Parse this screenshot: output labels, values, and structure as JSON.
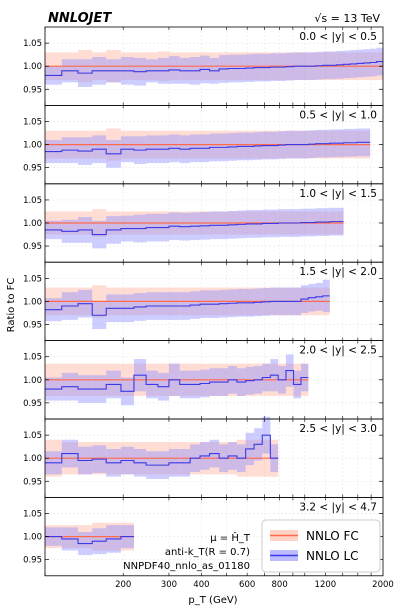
{
  "header": {
    "logo": "NNLOJET",
    "energy": "√s = 13 TeV"
  },
  "axes": {
    "ylabel": "Ratio to FC",
    "xlabel": "p_T (GeV)",
    "y_ticks": [
      "1.05",
      "1.00",
      "0.95"
    ],
    "x_ticks": [
      "200",
      "300",
      "400",
      "600",
      "800",
      "1200",
      "2000"
    ]
  },
  "annotation": {
    "scale": "μ = Ĥ_T",
    "jet": "anti-k_T(R = 0.7)",
    "pdf": "NNPDF40_nnlo_as_01180"
  },
  "legend": {
    "fc_label": "NNLO FC",
    "lc_label": "NNLO LC"
  },
  "colors": {
    "fc_line": "#ff6a4d",
    "fc_band": "#ffb4a0",
    "lc_line": "#3a3ae6",
    "lc_band": "#9090ff"
  },
  "chart_data": {
    "type": "line",
    "x_scale": "log",
    "xlim": [
      100,
      2000
    ],
    "ylim": [
      0.915,
      1.085
    ],
    "grid": true,
    "legend_position": "bottom-right",
    "panels": [
      {
        "label": "0.0 < |y| < 0.5",
        "edges": [
          100,
          116,
          134,
          152,
          172,
          196,
          220,
          245,
          272,
          300,
          330,
          362,
          395,
          430,
          468,
          507,
          548,
          592,
          638,
          686,
          737,
          790,
          846,
          905,
          967,
          1032,
          1101,
          1172,
          1248,
          1327,
          1410,
          1497,
          1588,
          1684,
          1784,
          1890,
          2000
        ],
        "lc": [
          0.98,
          0.99,
          0.985,
          0.99,
          0.99,
          0.99,
          0.988,
          0.99,
          0.99,
          0.992,
          0.99,
          0.99,
          0.993,
          0.99,
          0.994,
          0.995,
          0.995,
          0.996,
          0.997,
          0.997,
          0.998,
          0.998,
          0.999,
          1.0,
          1.0,
          1.0,
          1.001,
          1.002,
          1.002,
          1.003,
          1.004,
          1.005,
          1.006,
          1.007,
          1.008,
          1.01
        ],
        "lc_err": [
          0.02,
          0.025,
          0.03,
          0.03,
          0.025,
          0.03,
          0.03,
          0.025,
          0.028,
          0.03,
          0.028,
          0.03,
          0.03,
          0.028,
          0.03,
          0.03,
          0.03,
          0.03,
          0.03,
          0.03,
          0.03,
          0.03,
          0.03,
          0.03,
          0.03,
          0.03,
          0.03,
          0.03,
          0.03,
          0.03,
          0.03,
          0.03,
          0.03,
          0.03,
          0.03,
          0.03
        ],
        "fc_err": [
          0.03,
          0.03,
          0.035,
          0.03,
          0.035,
          0.03,
          0.03,
          0.03,
          0.032,
          0.03,
          0.03,
          0.03,
          0.03,
          0.03,
          0.03,
          0.03,
          0.03,
          0.03,
          0.03,
          0.03,
          0.03,
          0.03,
          0.03,
          0.03,
          0.03,
          0.03,
          0.03,
          0.03,
          0.03,
          0.03,
          0.03,
          0.03,
          0.03,
          0.03,
          0.03,
          0.03
        ]
      },
      {
        "label": "0.5 < |y| < 1.0",
        "edges": [
          100,
          116,
          134,
          152,
          172,
          196,
          220,
          245,
          272,
          300,
          330,
          362,
          395,
          430,
          468,
          507,
          548,
          592,
          638,
          686,
          737,
          790,
          846,
          905,
          967,
          1032,
          1101,
          1172,
          1248,
          1327,
          1410,
          1497,
          1588,
          1684,
          1784
        ],
        "lc": [
          0.985,
          0.988,
          0.986,
          0.99,
          0.98,
          0.99,
          0.988,
          0.99,
          0.99,
          0.992,
          0.99,
          0.992,
          0.992,
          0.994,
          0.994,
          0.995,
          0.996,
          0.996,
          0.997,
          0.998,
          0.998,
          0.999,
          1.0,
          1.0,
          1.0,
          1.001,
          1.002,
          1.002,
          1.003,
          1.003,
          1.004,
          1.004,
          1.005,
          1.005
        ],
        "lc_err": [
          0.025,
          0.028,
          0.03,
          0.03,
          0.03,
          0.028,
          0.03,
          0.03,
          0.03,
          0.03,
          0.03,
          0.03,
          0.03,
          0.03,
          0.03,
          0.03,
          0.03,
          0.03,
          0.03,
          0.03,
          0.03,
          0.03,
          0.03,
          0.03,
          0.03,
          0.03,
          0.03,
          0.03,
          0.03,
          0.03,
          0.03,
          0.03,
          0.03,
          0.03
        ],
        "fc_err": [
          0.03,
          0.03,
          0.03,
          0.03,
          0.035,
          0.03,
          0.03,
          0.03,
          0.03,
          0.03,
          0.03,
          0.03,
          0.03,
          0.03,
          0.03,
          0.03,
          0.03,
          0.03,
          0.03,
          0.03,
          0.03,
          0.03,
          0.03,
          0.03,
          0.03,
          0.03,
          0.03,
          0.03,
          0.03,
          0.03,
          0.03,
          0.03,
          0.03,
          0.03
        ]
      },
      {
        "label": "1.0 < |y| < 1.5",
        "edges": [
          100,
          116,
          134,
          152,
          172,
          196,
          220,
          245,
          272,
          300,
          330,
          362,
          395,
          430,
          468,
          507,
          548,
          592,
          638,
          686,
          737,
          790,
          846,
          905,
          967,
          1032,
          1101,
          1172,
          1248,
          1327,
          1410
        ],
        "lc": [
          0.985,
          0.982,
          0.985,
          0.975,
          0.985,
          0.988,
          0.988,
          0.99,
          0.99,
          0.993,
          0.992,
          0.993,
          0.994,
          0.995,
          0.995,
          0.996,
          0.997,
          0.998,
          0.998,
          0.999,
          0.999,
          1.0,
          1.0,
          1.0,
          1.001,
          1.001,
          1.002,
          1.002,
          1.003,
          1.003
        ],
        "lc_err": [
          0.02,
          0.025,
          0.028,
          0.03,
          0.03,
          0.028,
          0.03,
          0.03,
          0.03,
          0.03,
          0.03,
          0.03,
          0.03,
          0.03,
          0.03,
          0.03,
          0.03,
          0.03,
          0.03,
          0.03,
          0.03,
          0.03,
          0.03,
          0.03,
          0.03,
          0.03,
          0.03,
          0.03,
          0.03,
          0.03
        ],
        "fc_err": [
          0.025,
          0.025,
          0.025,
          0.03,
          0.025,
          0.025,
          0.025,
          0.025,
          0.025,
          0.025,
          0.025,
          0.025,
          0.025,
          0.025,
          0.025,
          0.025,
          0.025,
          0.025,
          0.025,
          0.025,
          0.025,
          0.025,
          0.025,
          0.025,
          0.025,
          0.025,
          0.025,
          0.025,
          0.025,
          0.025
        ]
      },
      {
        "label": "1.5 < |y| < 2.0",
        "edges": [
          100,
          116,
          134,
          152,
          172,
          196,
          220,
          245,
          272,
          300,
          330,
          362,
          395,
          430,
          468,
          507,
          548,
          592,
          638,
          686,
          737,
          790,
          846,
          905,
          967,
          1032,
          1101,
          1172,
          1248
        ],
        "lc": [
          0.982,
          0.99,
          0.995,
          0.97,
          0.985,
          0.985,
          0.988,
          0.99,
          0.99,
          0.99,
          0.99,
          0.992,
          0.994,
          0.994,
          0.995,
          0.996,
          0.997,
          0.997,
          0.998,
          0.999,
          1.0,
          1.0,
          1.0,
          1.0,
          1.005,
          1.008,
          1.01,
          1.012
        ],
        "lc_err": [
          0.025,
          0.03,
          0.03,
          0.03,
          0.03,
          0.03,
          0.03,
          0.03,
          0.03,
          0.03,
          0.03,
          0.03,
          0.03,
          0.03,
          0.03,
          0.03,
          0.03,
          0.03,
          0.03,
          0.03,
          0.03,
          0.03,
          0.03,
          0.03,
          0.03,
          0.03,
          0.03,
          0.035
        ],
        "fc_err": [
          0.03,
          0.03,
          0.03,
          0.035,
          0.03,
          0.03,
          0.03,
          0.03,
          0.03,
          0.03,
          0.03,
          0.03,
          0.03,
          0.03,
          0.03,
          0.03,
          0.03,
          0.03,
          0.03,
          0.03,
          0.03,
          0.03,
          0.03,
          0.03,
          0.03,
          0.03,
          0.03,
          0.03
        ]
      },
      {
        "label": "2.0 < |y| < 2.5",
        "edges": [
          100,
          116,
          134,
          152,
          172,
          196,
          220,
          245,
          272,
          300,
          330,
          362,
          395,
          430,
          468,
          507,
          548,
          592,
          638,
          686,
          737,
          790,
          846,
          905,
          967,
          1032
        ],
        "lc": [
          0.98,
          0.985,
          0.98,
          0.98,
          0.99,
          0.975,
          1.01,
          0.99,
          0.985,
          1.0,
          0.99,
          0.99,
          0.992,
          0.995,
          0.995,
          1.0,
          0.995,
          0.998,
          1.0,
          1.005,
          1.01,
          1.0,
          1.02,
          0.99,
          1.005
        ],
        "lc_err": [
          0.025,
          0.03,
          0.03,
          0.03,
          0.03,
          0.03,
          0.035,
          0.03,
          0.03,
          0.035,
          0.03,
          0.03,
          0.03,
          0.03,
          0.03,
          0.03,
          0.03,
          0.03,
          0.03,
          0.03,
          0.035,
          0.03,
          0.035,
          0.03,
          0.03
        ],
        "fc_err": [
          0.035,
          0.035,
          0.035,
          0.035,
          0.035,
          0.035,
          0.035,
          0.035,
          0.035,
          0.035,
          0.035,
          0.035,
          0.035,
          0.035,
          0.035,
          0.035,
          0.035,
          0.035,
          0.035,
          0.035,
          0.035,
          0.035,
          0.035,
          0.035,
          0.035
        ]
      },
      {
        "label": "2.5 < |y| < 3.0",
        "edges": [
          100,
          116,
          134,
          152,
          172,
          196,
          220,
          245,
          272,
          300,
          330,
          362,
          395,
          430,
          468,
          507,
          548,
          592,
          638,
          686,
          737,
          790
        ],
        "lc": [
          0.99,
          1.01,
          0.995,
          0.998,
          0.99,
          0.995,
          0.99,
          0.985,
          0.985,
          0.99,
          0.99,
          1.0,
          1.005,
          1.01,
          1.0,
          1.005,
          1.0,
          1.02,
          1.03,
          1.05,
          1.0
        ],
        "lc_err": [
          0.025,
          0.03,
          0.03,
          0.03,
          0.03,
          0.03,
          0.03,
          0.03,
          0.03,
          0.03,
          0.03,
          0.03,
          0.03,
          0.03,
          0.03,
          0.03,
          0.03,
          0.035,
          0.035,
          0.04,
          0.03
        ],
        "fc_err": [
          0.04,
          0.035,
          0.035,
          0.035,
          0.035,
          0.035,
          0.035,
          0.035,
          0.035,
          0.035,
          0.035,
          0.035,
          0.035,
          0.035,
          0.035,
          0.035,
          0.04,
          0.04,
          0.04,
          0.04,
          0.04
        ]
      },
      {
        "label": "3.2 < |y| < 4.7",
        "edges": [
          100,
          116,
          134,
          152,
          172,
          196,
          220
        ],
        "lc": [
          1.0,
          0.995,
          0.985,
          0.99,
          0.995,
          1.0
        ],
        "lc_err": [
          0.02,
          0.025,
          0.025,
          0.028,
          0.03,
          0.025
        ],
        "fc_err": [
          0.025,
          0.025,
          0.025,
          0.03,
          0.03,
          0.03
        ]
      }
    ]
  }
}
